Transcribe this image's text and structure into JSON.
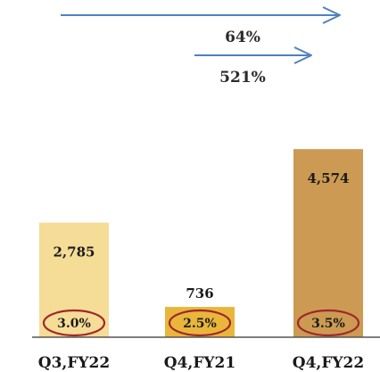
{
  "chart_data": {
    "type": "bar",
    "categories": [
      "Q3,FY22",
      "Q4,FY21",
      "Q4,FY22"
    ],
    "values": [
      2785,
      736,
      4574
    ],
    "value_labels": [
      "2,785",
      "736",
      "4,574"
    ],
    "percent_labels": [
      "3.0%",
      "2.5%",
      "3.5%"
    ],
    "ylim": [
      0,
      4800
    ],
    "grid": false,
    "growth_arrows": [
      {
        "label": "64%"
      },
      {
        "label": "521%"
      }
    ],
    "colors": {
      "bars": [
        "#f5dc97",
        "#e9b63c",
        "#cc9a52"
      ],
      "arrow": "#4f81bd",
      "ellipse": "#a0282a",
      "axis": "#555555"
    }
  }
}
